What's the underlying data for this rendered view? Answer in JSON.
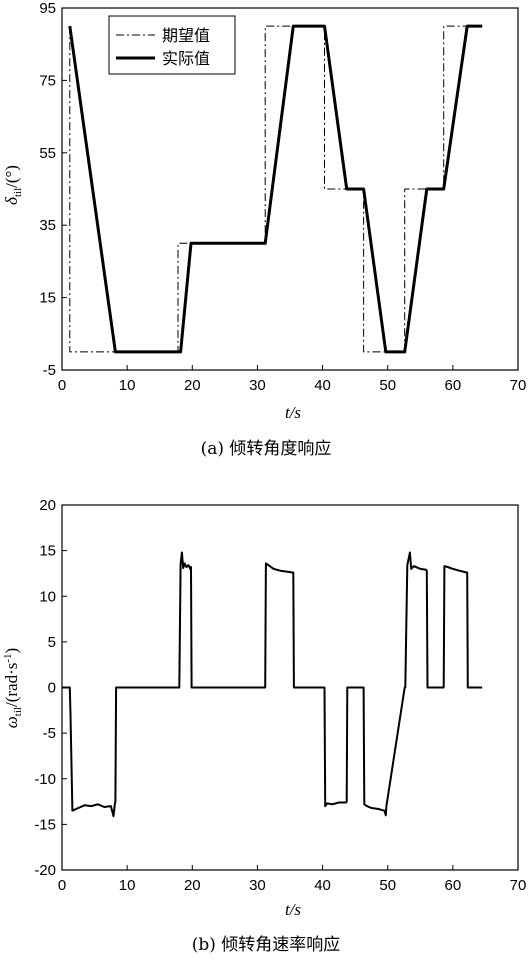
{
  "chart_data": [
    {
      "type": "line",
      "caption": "(a) 倾转角度响应",
      "xlabel": "t/s",
      "ylabel": "δtil/(°)",
      "ylabel_main": "δ",
      "ylabel_sub": "til",
      "ylabel_rest": "/(°)",
      "xlim": [
        0,
        70
      ],
      "ylim": [
        -5,
        95
      ],
      "xticks": [
        0,
        10,
        20,
        30,
        40,
        50,
        60,
        70
      ],
      "yticks": [
        -5,
        15,
        35,
        55,
        75,
        95
      ],
      "grid": false,
      "legend_position": "top-left",
      "series": [
        {
          "name": "期望值",
          "style": "dash-dot",
          "color": "#000000",
          "x": [
            1.2,
            1.2,
            17.8,
            17.8,
            31.2,
            31.2,
            40.3,
            40.3,
            46.3,
            46.3,
            52.6,
            52.6,
            58.6,
            58.6,
            64.5
          ],
          "y": [
            90,
            0,
            0,
            30,
            30,
            90,
            90,
            45,
            45,
            0,
            0,
            45,
            45,
            90,
            90
          ]
        },
        {
          "name": "实际值",
          "style": "solid",
          "color": "#000000",
          "x": [
            1.2,
            8.2,
            18.2,
            19.8,
            31.2,
            35.5,
            40.3,
            43.7,
            46.3,
            49.7,
            52.6,
            56.0,
            58.6,
            62.2,
            64.5
          ],
          "y": [
            90,
            0,
            0,
            30,
            30,
            90,
            90,
            45,
            45,
            0,
            0,
            45,
            45,
            90,
            90
          ]
        }
      ]
    },
    {
      "type": "line",
      "caption": "(b) 倾转角速率响应",
      "xlabel": "t/s",
      "ylabel": "ωtil/(rad·s⁻¹)",
      "ylabel_main": "ω",
      "ylabel_sub": "til",
      "ylabel_rest": "/(rad·s",
      "ylabel_sup": "-1",
      "ylabel_end": ")",
      "xlim": [
        0,
        70
      ],
      "ylim": [
        -20,
        20
      ],
      "xticks": [
        0,
        10,
        20,
        30,
        40,
        50,
        60,
        70
      ],
      "yticks": [
        -20,
        -15,
        -10,
        -5,
        0,
        5,
        10,
        15,
        20
      ],
      "grid": false,
      "series": [
        {
          "color": "#000000",
          "x": [
            0,
            1.2,
            1.3,
            1.6,
            2.5,
            3.5,
            4.5,
            5.5,
            6.5,
            7.5,
            7.9,
            8.1,
            8.2,
            8.3,
            18.0,
            18.2,
            18.4,
            18.6,
            18.8,
            19.1,
            19.4,
            19.7,
            19.8,
            19.9,
            31.2,
            31.3,
            31.7,
            32.5,
            33.5,
            34.5,
            35.4,
            35.5,
            35.6,
            40.3,
            40.4,
            40.7,
            41.5,
            42.5,
            43.6,
            43.7,
            43.8,
            46.3,
            46.4,
            46.8,
            47.5,
            48.5,
            49.5,
            49.7,
            49.8,
            52.6,
            52.7,
            53.0,
            53.4,
            53.6,
            54.0,
            55.0,
            55.9,
            56.0,
            56.1,
            58.6,
            58.7,
            59.2,
            60.0,
            61.0,
            62.1,
            62.2,
            62.3,
            64.5
          ],
          "y": [
            0,
            0,
            -3,
            -13.5,
            -13.2,
            -12.9,
            -13.0,
            -12.8,
            -13.1,
            -13.0,
            -14.1,
            -12.8,
            -12.5,
            0,
            0,
            13.5,
            14.8,
            13.1,
            13.6,
            13.2,
            13.4,
            13.0,
            13.2,
            0,
            0,
            13.6,
            13.4,
            13.0,
            12.8,
            12.7,
            12.6,
            12.6,
            0,
            0,
            -13.0,
            -12.7,
            -12.8,
            -12.6,
            -12.6,
            -12.5,
            0,
            0,
            -12.8,
            -13.0,
            -13.2,
            -13.3,
            -13.5,
            -14.0,
            -13.0,
            0,
            0,
            13.4,
            14.8,
            13.0,
            13.3,
            13.0,
            12.9,
            12.8,
            0,
            0,
            13.3,
            13.2,
            13.0,
            12.8,
            12.6,
            12.6,
            0,
            0
          ]
        }
      ]
    }
  ]
}
